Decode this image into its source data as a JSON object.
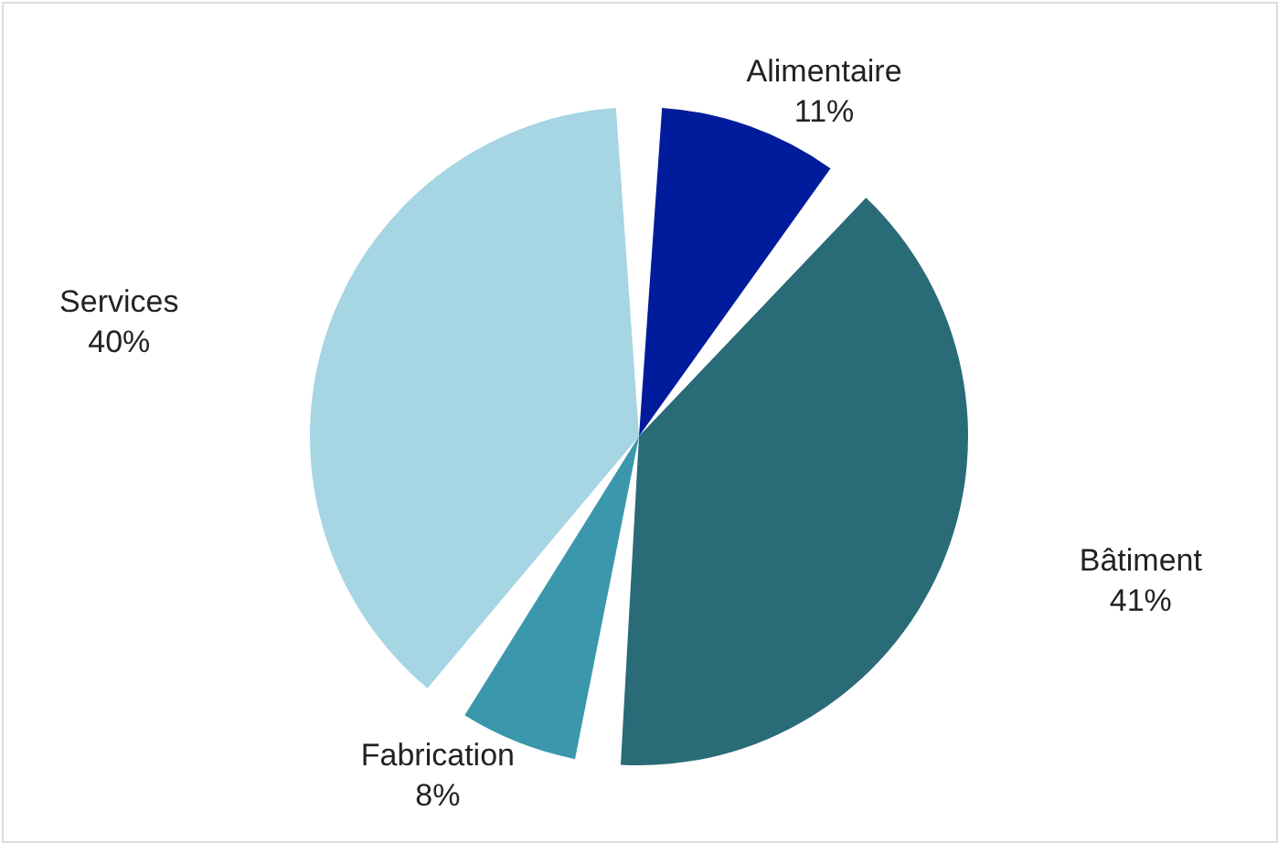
{
  "chart_data": {
    "type": "pie",
    "categories": [
      "Alimentaire",
      "Bâtiment",
      "Fabrication",
      "Services"
    ],
    "values": [
      11,
      41,
      8,
      40
    ],
    "value_labels": [
      "11%",
      "41%",
      "8%",
      "40%"
    ],
    "colors": [
      "#001c9c",
      "#2a6b78",
      "#3a97ac",
      "#a6d5e3"
    ]
  }
}
